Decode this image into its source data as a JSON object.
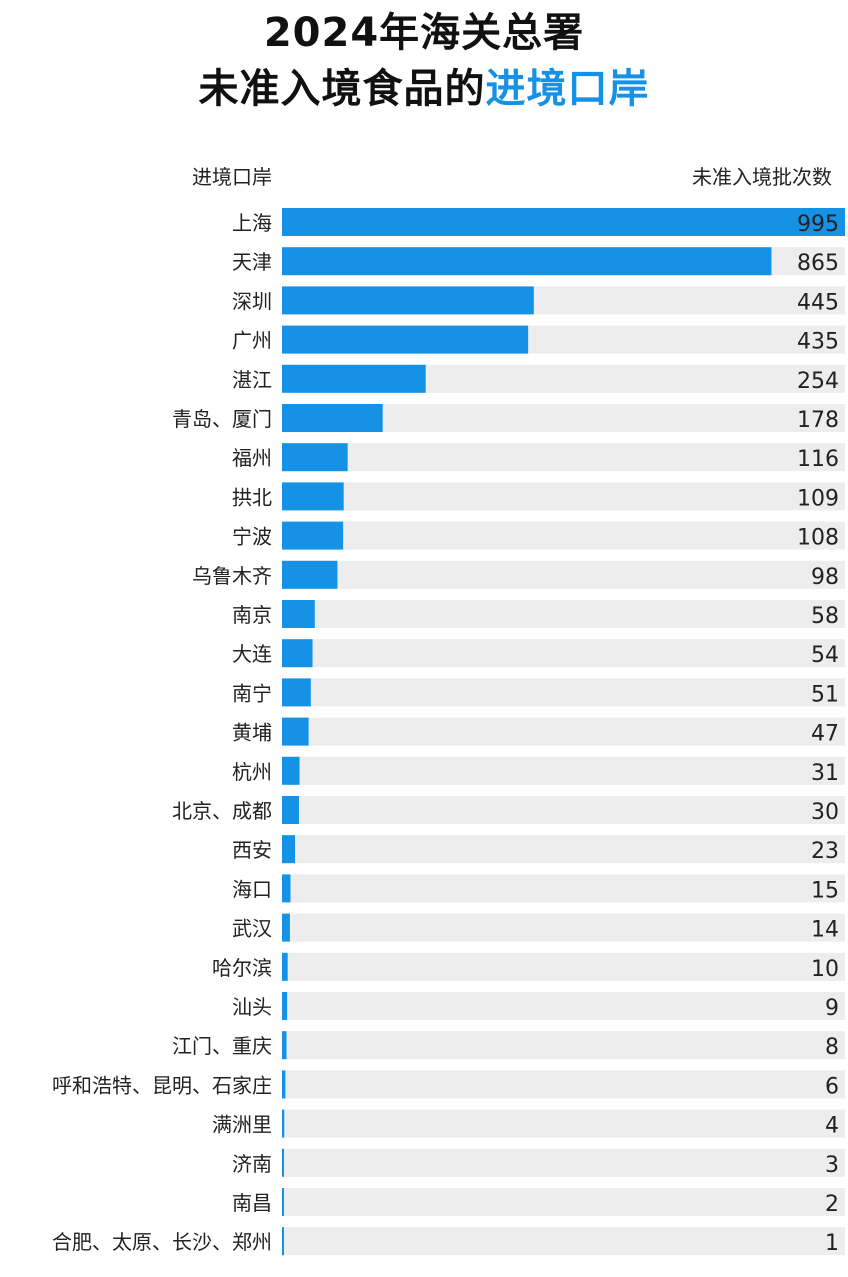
{
  "title_line1": "2024年海关总署",
  "title_line2_prefix": "未准入境食品的",
  "title_line2_accent": "进境口岸",
  "column_left_header": "进境口岸",
  "column_right_header": "未准入境批次数",
  "colors": {
    "bar": "#1592e6",
    "track": "#ededed",
    "accent": "#1592e6"
  },
  "chart_data": {
    "type": "bar",
    "orientation": "horizontal",
    "title": "2024年海关总署未准入境食品的进境口岸",
    "xlabel": "未准入境批次数",
    "ylabel": "进境口岸",
    "xlim": [
      0,
      995
    ],
    "grid": false,
    "legend": "none",
    "categories": [
      "上海",
      "天津",
      "深圳",
      "广州",
      "湛江",
      "青岛、厦门",
      "福州",
      "拱北",
      "宁波",
      "乌鲁木齐",
      "南京",
      "大连",
      "南宁",
      "黄埔",
      "杭州",
      "北京、成都",
      "西安",
      "海口",
      "武汉",
      "哈尔滨",
      "汕头",
      "江门、重庆",
      "呼和浩特、昆明、石家庄",
      "满洲里",
      "济南",
      "南昌",
      "合肥、太原、长沙、郑州"
    ],
    "values": [
      995,
      865,
      445,
      435,
      254,
      178,
      116,
      109,
      108,
      98,
      58,
      54,
      51,
      47,
      31,
      30,
      23,
      15,
      14,
      10,
      9,
      8,
      6,
      4,
      3,
      2,
      1
    ]
  }
}
